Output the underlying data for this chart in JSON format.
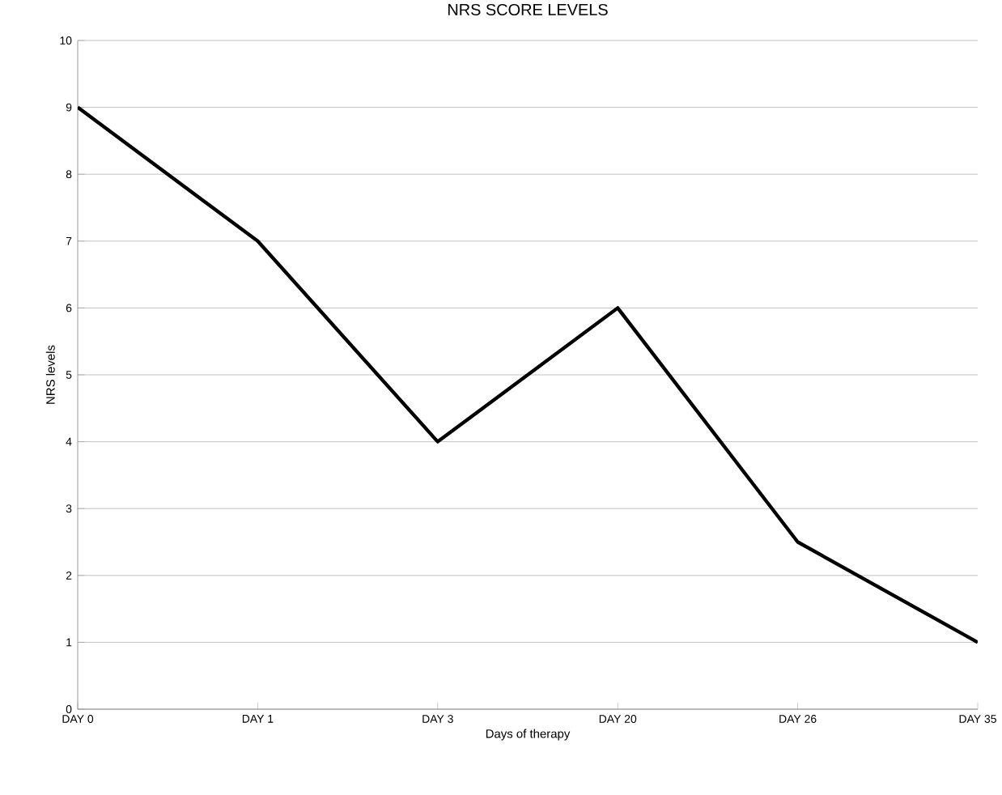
{
  "chart_data": {
    "type": "line",
    "title": "NRS SCORE LEVELS",
    "xlabel": "Days of therapy",
    "ylabel": "NRS levels",
    "categories": [
      "DAY 0",
      "DAY 1",
      "DAY 3",
      "DAY 20",
      "DAY 26",
      "DAY 35"
    ],
    "series": [
      {
        "color": "#000000",
        "values": [
          9,
          7,
          4,
          6,
          2.5,
          1
        ]
      }
    ],
    "ylim": [
      0,
      10
    ],
    "yticks": [
      0,
      1,
      2,
      3,
      4,
      5,
      6,
      7,
      8,
      9,
      10
    ],
    "grid": "y",
    "marker": "none",
    "line_style": "solid"
  }
}
